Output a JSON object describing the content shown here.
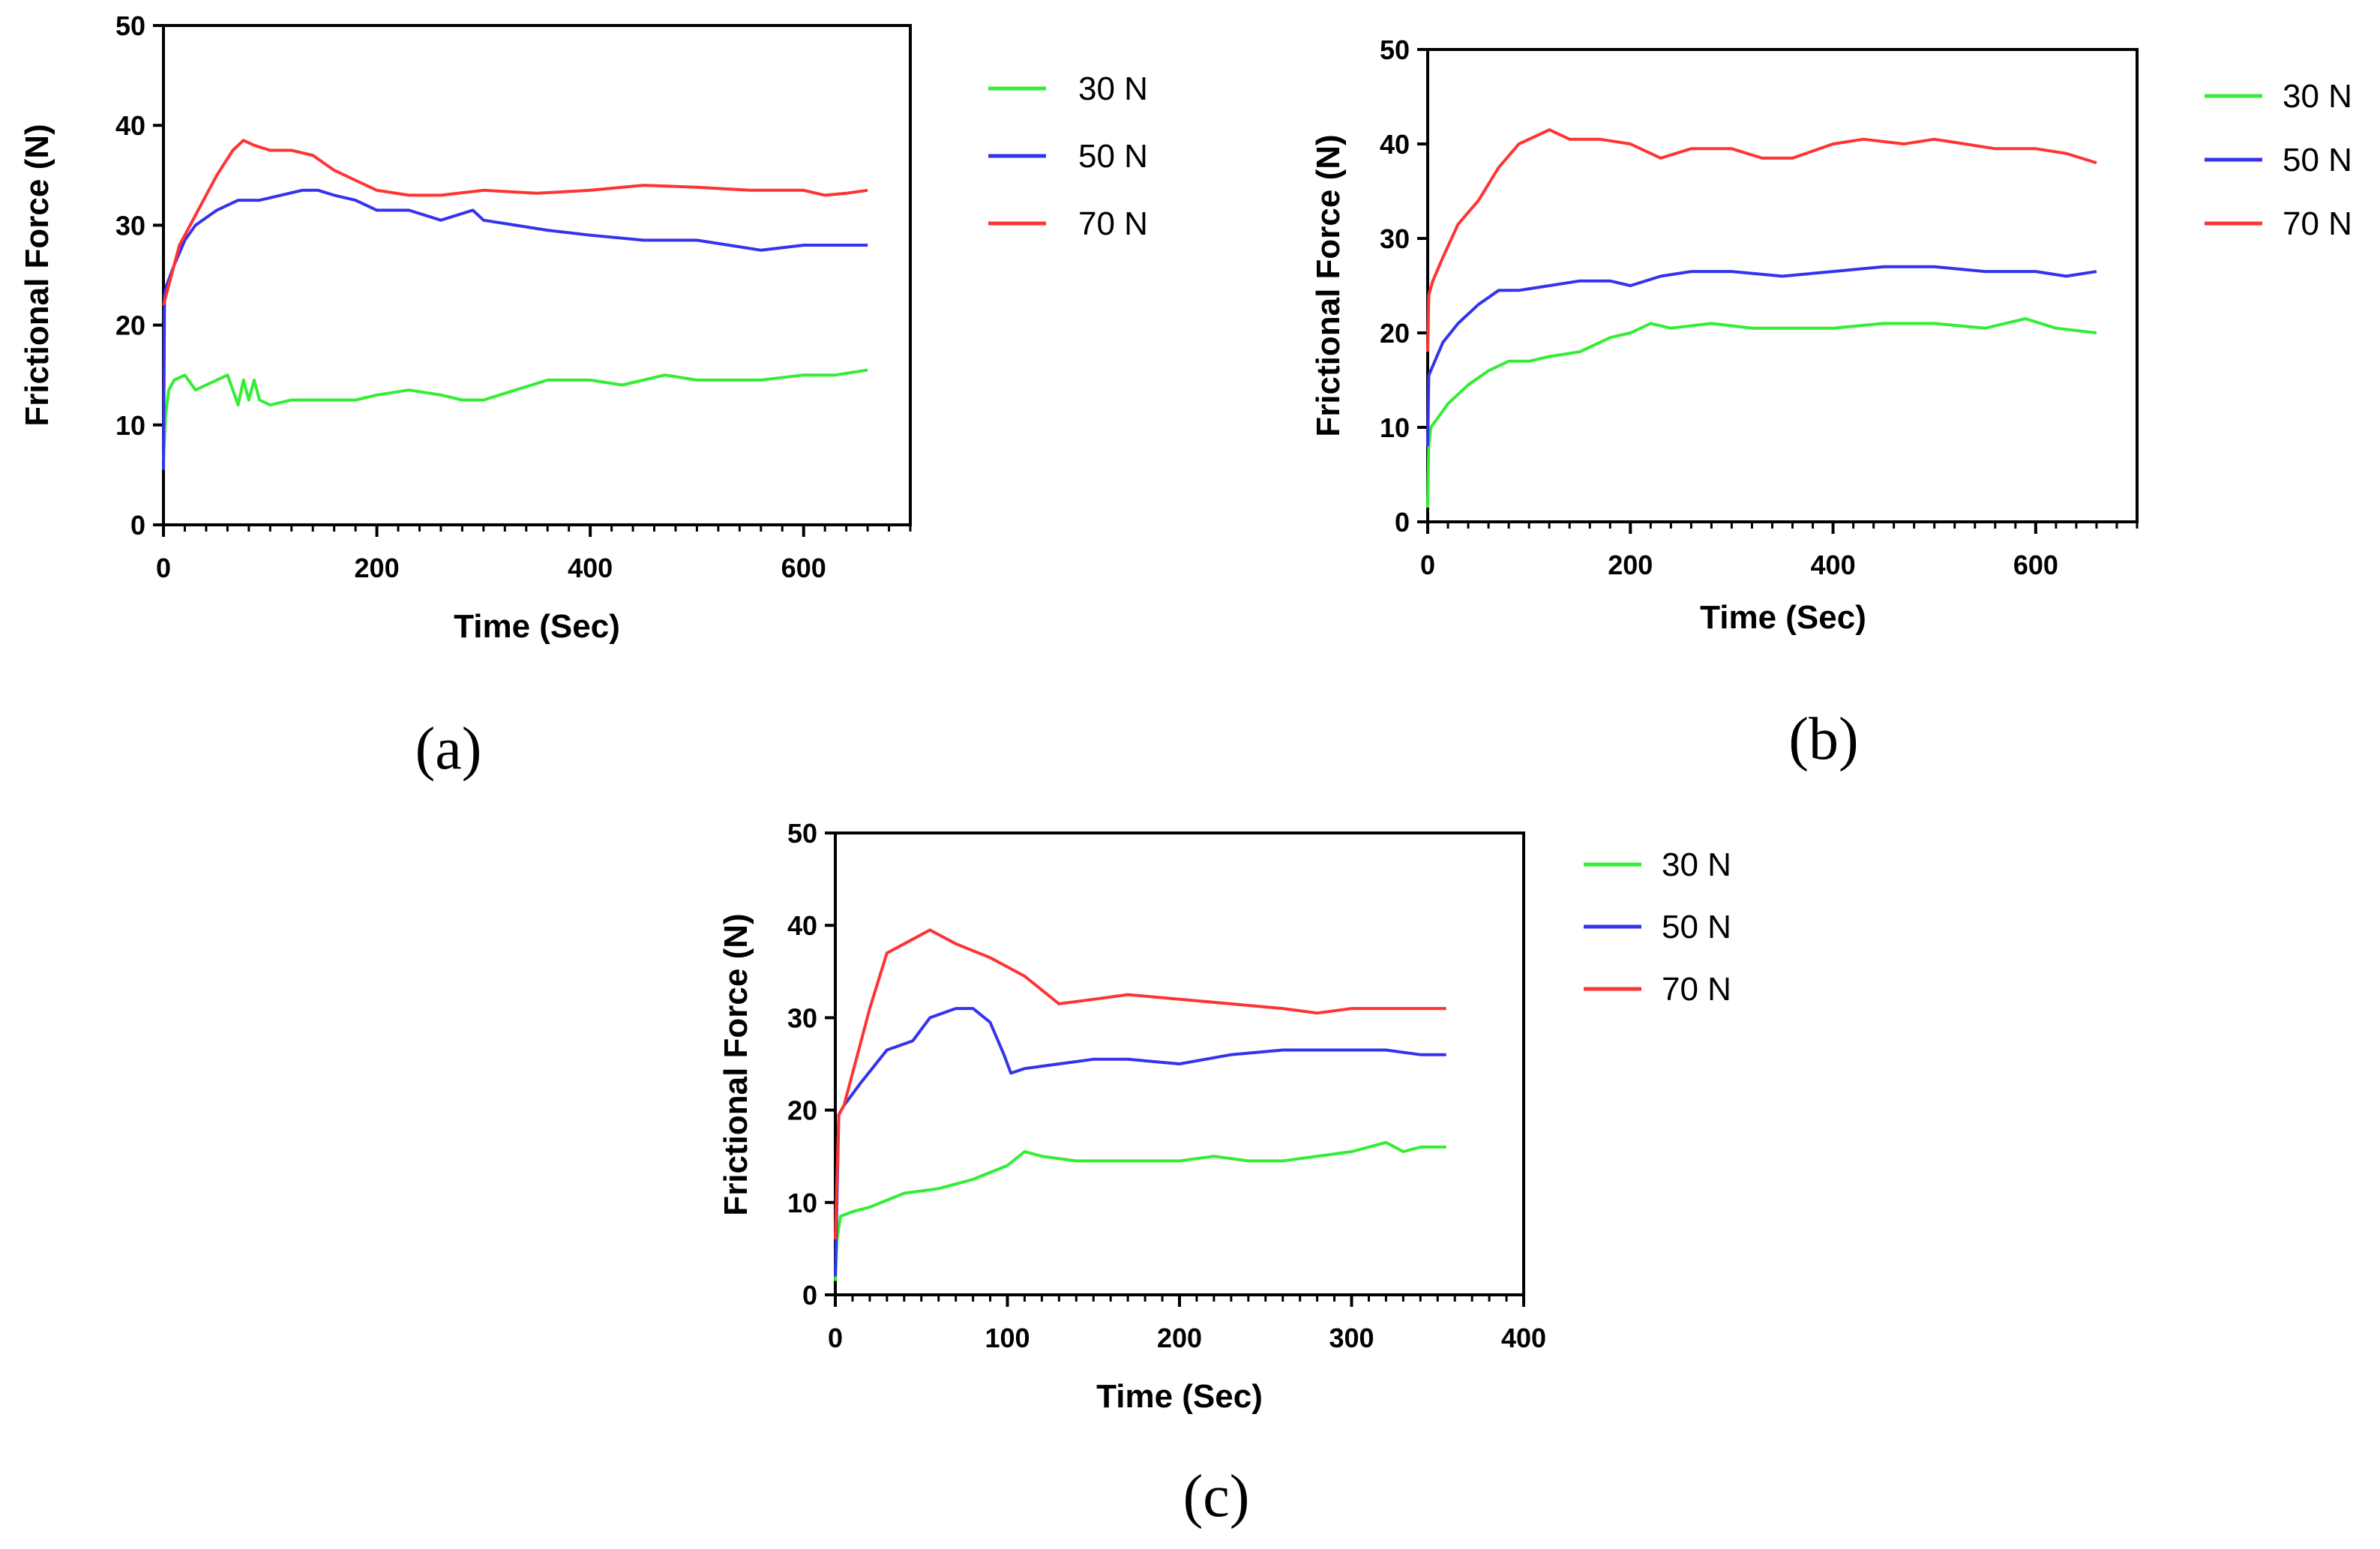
{
  "colors": {
    "30 N": "#33ee33",
    "50 N": "#3333ee",
    "70 N": "#ff3333",
    "axis": "#000000"
  },
  "chart_data": [
    {
      "type": "line",
      "panel_label": "(a)",
      "xlabel": "Time (Sec)",
      "ylabel": "Frictional Force (N)",
      "xlim": [
        0,
        700
      ],
      "ylim": [
        0,
        50
      ],
      "xticks": [
        0,
        200,
        400,
        600
      ],
      "yticks": [
        0,
        10,
        20,
        30,
        40,
        50
      ],
      "legend": [
        "30 N",
        "50 N",
        "70 N"
      ],
      "series": [
        {
          "name": "30 N",
          "x": [
            0,
            2,
            5,
            10,
            20,
            30,
            40,
            50,
            60,
            70,
            75,
            80,
            85,
            90,
            100,
            120,
            150,
            180,
            200,
            230,
            260,
            280,
            300,
            330,
            360,
            400,
            430,
            470,
            500,
            530,
            560,
            600,
            630,
            660
          ],
          "y": [
            6.5,
            11,
            13.5,
            14.5,
            15,
            13.5,
            14,
            14.5,
            15,
            12,
            14.5,
            12.5,
            14.5,
            12.5,
            12,
            12.5,
            12.5,
            12.5,
            13,
            13.5,
            13,
            12.5,
            12.5,
            13.5,
            14.5,
            14.5,
            14,
            15,
            14.5,
            14.5,
            14.5,
            15,
            15,
            15.5
          ]
        },
        {
          "name": "50 N",
          "x": [
            0,
            1,
            3,
            10,
            20,
            30,
            50,
            70,
            90,
            110,
            130,
            145,
            160,
            180,
            200,
            230,
            260,
            290,
            300,
            330,
            360,
            400,
            450,
            500,
            530,
            560,
            600,
            630,
            660
          ],
          "y": [
            5.5,
            23,
            24,
            26,
            28.5,
            30,
            31.5,
            32.5,
            32.5,
            33,
            33.5,
            33.5,
            33,
            32.5,
            31.5,
            31.5,
            30.5,
            31.5,
            30.5,
            30,
            29.5,
            29,
            28.5,
            28.5,
            28,
            27.5,
            28,
            28,
            28
          ]
        },
        {
          "name": "70 N",
          "x": [
            0,
            5,
            15,
            30,
            50,
            65,
            75,
            85,
            100,
            120,
            140,
            160,
            180,
            200,
            230,
            260,
            300,
            350,
            400,
            450,
            500,
            550,
            600,
            620,
            640,
            660
          ],
          "y": [
            22,
            24,
            28,
            31,
            35,
            37.5,
            38.5,
            38,
            37.5,
            37.5,
            37,
            35.5,
            34.5,
            33.5,
            33,
            33,
            33.5,
            33.2,
            33.5,
            34,
            33.8,
            33.5,
            33.5,
            33,
            33.2,
            33.5
          ]
        }
      ]
    },
    {
      "type": "line",
      "panel_label": "(b)",
      "xlabel": "Time (Sec)",
      "ylabel": "Frictional Force (N)",
      "xlim": [
        0,
        700
      ],
      "ylim": [
        0,
        50
      ],
      "xticks": [
        0,
        200,
        400,
        600
      ],
      "yticks": [
        0,
        10,
        20,
        30,
        40,
        50
      ],
      "legend": [
        "30 N",
        "50 N",
        "70 N"
      ],
      "series": [
        {
          "name": "30 N",
          "x": [
            0,
            1,
            3,
            10,
            20,
            40,
            60,
            80,
            100,
            120,
            150,
            180,
            200,
            220,
            240,
            280,
            320,
            360,
            400,
            450,
            500,
            550,
            590,
            620,
            660
          ],
          "y": [
            1.5,
            8,
            10,
            11,
            12.5,
            14.5,
            16,
            17,
            17,
            17.5,
            18,
            19.5,
            20,
            21,
            20.5,
            21,
            20.5,
            20.5,
            20.5,
            21,
            21,
            20.5,
            21.5,
            20.5,
            20
          ]
        },
        {
          "name": "50 N",
          "x": [
            0,
            1,
            5,
            15,
            30,
            50,
            70,
            90,
            120,
            150,
            180,
            200,
            230,
            260,
            300,
            350,
            400,
            450,
            500,
            550,
            600,
            630,
            660
          ],
          "y": [
            8,
            15.5,
            16.5,
            19,
            21,
            23,
            24.5,
            24.5,
            25,
            25.5,
            25.5,
            25,
            26,
            26.5,
            26.5,
            26,
            26.5,
            27,
            27,
            26.5,
            26.5,
            26,
            26.5
          ]
        },
        {
          "name": "70 N",
          "x": [
            0,
            1,
            5,
            15,
            30,
            50,
            70,
            90,
            110,
            120,
            140,
            170,
            200,
            230,
            260,
            300,
            330,
            360,
            400,
            430,
            470,
            500,
            530,
            560,
            600,
            630,
            660
          ],
          "y": [
            18,
            24,
            25.5,
            28,
            31.5,
            34,
            37.5,
            40,
            41,
            41.5,
            40.5,
            40.5,
            40,
            38.5,
            39.5,
            39.5,
            38.5,
            38.5,
            40,
            40.5,
            40,
            40.5,
            40,
            39.5,
            39.5,
            39,
            38
          ]
        }
      ]
    },
    {
      "type": "line",
      "panel_label": "(c)",
      "xlabel": "Time (Sec)",
      "ylabel": "Frictional Force (N)",
      "xlim": [
        0,
        400
      ],
      "ylim": [
        0,
        50
      ],
      "xticks": [
        0,
        100,
        200,
        300,
        400
      ],
      "yticks": [
        0,
        10,
        20,
        30,
        40,
        50
      ],
      "legend": [
        "30 N",
        "50 N",
        "70 N"
      ],
      "series": [
        {
          "name": "30 N",
          "x": [
            0,
            1,
            3,
            10,
            20,
            40,
            60,
            80,
            100,
            110,
            120,
            140,
            160,
            180,
            200,
            220,
            240,
            260,
            280,
            300,
            310,
            320,
            330,
            340,
            355
          ],
          "y": [
            1.5,
            6,
            8.5,
            9,
            9.5,
            11,
            11.5,
            12.5,
            14,
            15.5,
            15,
            14.5,
            14.5,
            14.5,
            14.5,
            15,
            14.5,
            14.5,
            15,
            15.5,
            16,
            16.5,
            15.5,
            16,
            16
          ]
        },
        {
          "name": "50 N",
          "x": [
            0,
            2,
            5,
            15,
            30,
            45,
            55,
            70,
            80,
            90,
            98,
            102,
            110,
            130,
            150,
            170,
            200,
            230,
            260,
            290,
            320,
            340,
            355
          ],
          "y": [
            2,
            19.5,
            20.5,
            23,
            26.5,
            27.5,
            30,
            31,
            31,
            29.5,
            26,
            24,
            24.5,
            25,
            25.5,
            25.5,
            25,
            26,
            26.5,
            26.5,
            26.5,
            26,
            26
          ]
        },
        {
          "name": "70 N",
          "x": [
            0,
            2,
            5,
            10,
            20,
            30,
            45,
            55,
            70,
            90,
            100,
            110,
            120,
            130,
            150,
            170,
            200,
            230,
            260,
            280,
            300,
            320,
            340,
            355
          ],
          "y": [
            6,
            19.5,
            20.5,
            24,
            31,
            37,
            38.5,
            39.5,
            38,
            36.5,
            35.5,
            34.5,
            33,
            31.5,
            32,
            32.5,
            32,
            31.5,
            31,
            30.5,
            31,
            31,
            31,
            31
          ]
        }
      ]
    }
  ]
}
